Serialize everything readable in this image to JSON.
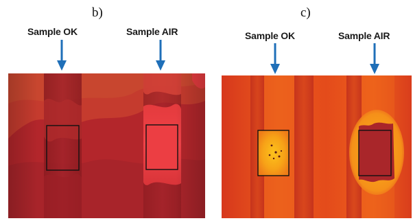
{
  "panels": [
    {
      "id": "b",
      "letter": "b)",
      "label_left": "Sample OK",
      "label_right": "Sample AIR",
      "colors": {
        "background": "#b7272a",
        "band_dark": "#8f1d22",
        "upper_region": "#c23a2c",
        "lower_region": "#a9262a",
        "sample_air_fill": "#ea3b3f",
        "sample_ok_fill": "#a9262a",
        "frame": "#111111"
      }
    },
    {
      "id": "c",
      "letter": "c)",
      "label_left": "Sample OK",
      "label_right": "Sample AIR",
      "colors": {
        "background": "#e8511b",
        "band_dark": "#c4341c",
        "sample_ok_fill": "#f7a617",
        "sample_air_fill": "#a9262a",
        "frame": "#111111"
      }
    }
  ],
  "arrow_color": "#1f6fb8"
}
